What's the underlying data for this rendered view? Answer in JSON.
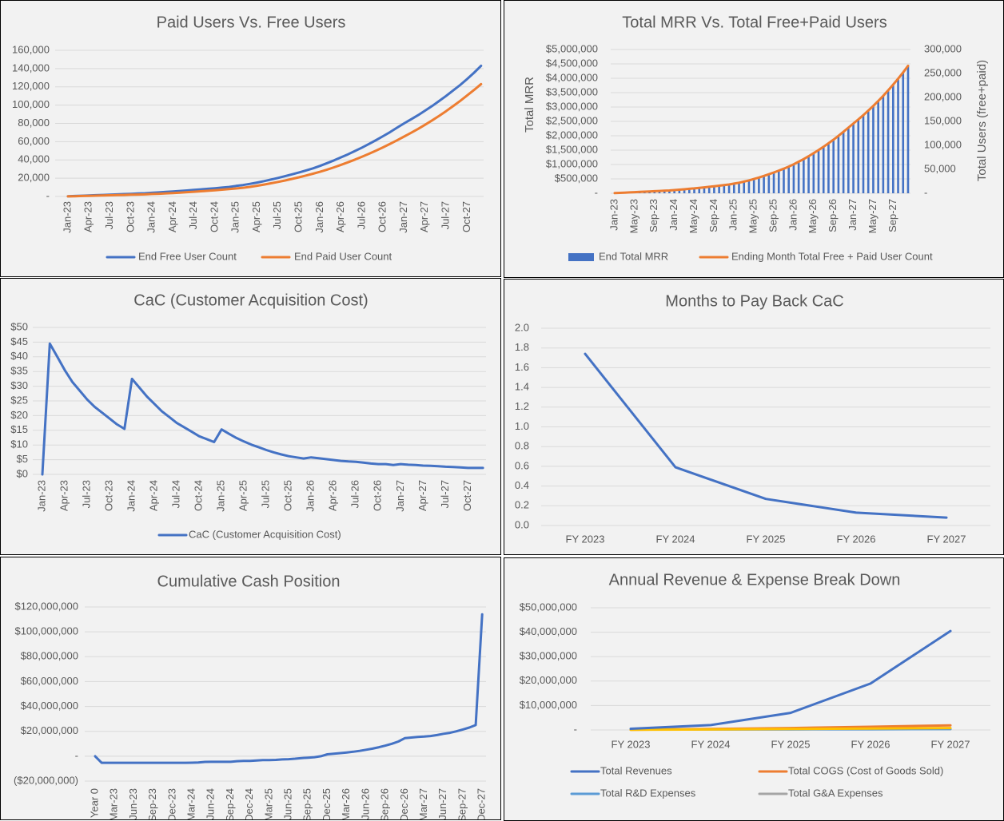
{
  "chart_data": [
    {
      "type": "line",
      "title": "Paid Users Vs. Free Users",
      "ylim": [
        0,
        160000
      ],
      "yticks": [
        "-",
        "20,000",
        "40,000",
        "60,000",
        "80,000",
        "100,000",
        "120,000",
        "140,000",
        "160,000"
      ],
      "grid": true,
      "legend": "bottom",
      "x": [
        "Jan-23",
        "Feb-23",
        "Mar-23",
        "Apr-23",
        "May-23",
        "Jun-23",
        "Jul-23",
        "Aug-23",
        "Sep-23",
        "Oct-23",
        "Nov-23",
        "Dec-23",
        "Jan-24",
        "Feb-24",
        "Mar-24",
        "Apr-24",
        "May-24",
        "Jun-24",
        "Jul-24",
        "Aug-24",
        "Sep-24",
        "Oct-24",
        "Nov-24",
        "Dec-24",
        "Jan-25",
        "Feb-25",
        "Mar-25",
        "Apr-25",
        "May-25",
        "Jun-25",
        "Jul-25",
        "Aug-25",
        "Sep-25",
        "Oct-25",
        "Nov-25",
        "Dec-25",
        "Jan-26",
        "Feb-26",
        "Mar-26",
        "Apr-26",
        "May-26",
        "Jun-26",
        "Jul-26",
        "Aug-26",
        "Sep-26",
        "Oct-26",
        "Nov-26",
        "Dec-26",
        "Jan-27",
        "Feb-27",
        "Mar-27",
        "Apr-27",
        "May-27",
        "Jun-27",
        "Jul-27",
        "Aug-27",
        "Sep-27",
        "Oct-27",
        "Nov-27",
        "Dec-27"
      ],
      "series": [
        {
          "name": "End Free User Count",
          "color": "#4472c4",
          "values": [
            200,
            500,
            800,
            1100,
            1400,
            1700,
            2000,
            2300,
            2600,
            2900,
            3200,
            3500,
            4000,
            4500,
            5000,
            5500,
            6000,
            6600,
            7200,
            7800,
            8400,
            9000,
            9700,
            10400,
            11500,
            12500,
            13800,
            15200,
            16800,
            18500,
            20300,
            22200,
            24200,
            26300,
            28500,
            30800,
            33500,
            36500,
            39500,
            42800,
            46200,
            49800,
            53500,
            57500,
            61600,
            66000,
            70500,
            75300,
            80000,
            84500,
            89000,
            94000,
            99000,
            104500,
            110000,
            116000,
            122000,
            128500,
            135500,
            143000
          ]
        },
        {
          "name": "End Paid User Count",
          "color": "#ed7d31",
          "values": [
            100,
            300,
            500,
            700,
            900,
            1100,
            1300,
            1500,
            1700,
            1900,
            2100,
            2300,
            2700,
            3000,
            3400,
            3800,
            4200,
            4700,
            5200,
            5700,
            6200,
            6800,
            7400,
            8000,
            8700,
            9500,
            10500,
            11700,
            13000,
            14400,
            15900,
            17500,
            19200,
            21000,
            22900,
            24900,
            27000,
            29400,
            31900,
            34600,
            37400,
            40400,
            43500,
            46800,
            50200,
            53800,
            57600,
            61500,
            65600,
            69700,
            74000,
            78500,
            83200,
            88200,
            93400,
            98900,
            104600,
            110500,
            116600,
            123000
          ]
        }
      ]
    },
    {
      "type": "bar+line",
      "title": "Total MRR Vs. Total Free+Paid Users",
      "ylabel": "Total MRR",
      "y2label": "Total Users (free+paid)",
      "ylim": [
        0,
        5000000
      ],
      "y2lim": [
        0,
        300000
      ],
      "yticks": [
        "-",
        "$500,000",
        "$1,000,000",
        "$1,500,000",
        "$2,000,000",
        "$2,500,000",
        "$3,000,000",
        "$3,500,000",
        "$4,000,000",
        "$4,500,000",
        "$5,000,000"
      ],
      "y2ticks": [
        "-",
        "50,000",
        "100,000",
        "150,000",
        "200,000",
        "250,000",
        "300,000"
      ],
      "grid": true,
      "legend": "bottom",
      "x": [
        "Jan-23",
        "Feb-23",
        "Mar-23",
        "Apr-23",
        "May-23",
        "Jun-23",
        "Jul-23",
        "Aug-23",
        "Sep-23",
        "Oct-23",
        "Nov-23",
        "Dec-23",
        "Jan-24",
        "Feb-24",
        "Mar-24",
        "Apr-24",
        "May-24",
        "Jun-24",
        "Jul-24",
        "Aug-24",
        "Sep-24",
        "Oct-24",
        "Nov-24",
        "Dec-24",
        "Jan-25",
        "Feb-25",
        "Mar-25",
        "Apr-25",
        "May-25",
        "Jun-25",
        "Jul-25",
        "Aug-25",
        "Sep-25",
        "Oct-25",
        "Nov-25",
        "Dec-25",
        "Jan-26",
        "Feb-26",
        "Mar-26",
        "Apr-26",
        "May-26",
        "Jun-26",
        "Jul-26",
        "Aug-26",
        "Sep-26",
        "Oct-26",
        "Nov-26",
        "Dec-26",
        "Jan-27",
        "Feb-27",
        "Mar-27",
        "Apr-27",
        "May-27",
        "Jun-27",
        "Jul-27",
        "Aug-27",
        "Sep-27",
        "Oct-27",
        "Nov-27",
        "Dec-27"
      ],
      "series": [
        {
          "name": "End Total MRR",
          "color": "#4472c4",
          "axis": "left",
          "kind": "bar",
          "values": [
            5000,
            13000,
            22000,
            30000,
            38000,
            47000,
            55000,
            63000,
            72000,
            80000,
            89000,
            97000,
            112000,
            125000,
            140000,
            155000,
            170000,
            189000,
            207000,
            225000,
            244000,
            264000,
            286000,
            307000,
            337000,
            367000,
            406000,
            449000,
            498000,
            549000,
            605000,
            663000,
            725000,
            790000,
            858000,
            930000,
            1010000,
            1100000,
            1192000,
            1293000,
            1396000,
            1506000,
            1620000,
            1742000,
            1867000,
            2001000,
            2139000,
            2285000,
            2432000,
            2575000,
            2722000,
            2881000,
            3043000,
            3218000,
            3397000,
            3589000,
            3784000,
            3991000,
            4210000,
            4442000
          ]
        },
        {
          "name": "Ending Month Total Free + Paid User Count",
          "color": "#ed7d31",
          "axis": "right",
          "kind": "line",
          "values": [
            300,
            800,
            1300,
            1800,
            2300,
            2800,
            3300,
            3800,
            4300,
            4800,
            5300,
            5800,
            6700,
            7500,
            8400,
            9300,
            10200,
            11300,
            12400,
            13500,
            14600,
            15800,
            17100,
            18400,
            20200,
            22000,
            24300,
            26900,
            29800,
            32900,
            36200,
            39700,
            43400,
            47300,
            51400,
            55700,
            60500,
            65900,
            71400,
            77400,
            83600,
            90200,
            97000,
            104300,
            111800,
            119800,
            128100,
            136800,
            145600,
            154200,
            163000,
            172500,
            182200,
            192700,
            203400,
            214900,
            226600,
            239000,
            252100,
            266000
          ]
        }
      ]
    },
    {
      "type": "line",
      "title": "CaC (Customer Acquisition Cost)",
      "ylim": [
        0,
        50
      ],
      "yticks": [
        "$0",
        "$5",
        "$10",
        "$15",
        "$20",
        "$25",
        "$30",
        "$35",
        "$40",
        "$45",
        "$50"
      ],
      "grid": true,
      "legend": "bottom",
      "x": [
        "Jan-23",
        "Feb-23",
        "Mar-23",
        "Apr-23",
        "May-23",
        "Jun-23",
        "Jul-23",
        "Aug-23",
        "Sep-23",
        "Oct-23",
        "Nov-23",
        "Dec-23",
        "Jan-24",
        "Feb-24",
        "Mar-24",
        "Apr-24",
        "May-24",
        "Jun-24",
        "Jul-24",
        "Aug-24",
        "Sep-24",
        "Oct-24",
        "Nov-24",
        "Dec-24",
        "Jan-25",
        "Feb-25",
        "Mar-25",
        "Apr-25",
        "May-25",
        "Jun-25",
        "Jul-25",
        "Aug-25",
        "Sep-25",
        "Oct-25",
        "Nov-25",
        "Dec-25",
        "Jan-26",
        "Feb-26",
        "Mar-26",
        "Apr-26",
        "May-26",
        "Jun-26",
        "Jul-26",
        "Aug-26",
        "Sep-26",
        "Oct-26",
        "Nov-26",
        "Dec-26",
        "Jan-27",
        "Feb-27",
        "Mar-27",
        "Apr-27",
        "May-27",
        "Jun-27",
        "Jul-27",
        "Aug-27",
        "Sep-27",
        "Oct-27",
        "Nov-27",
        "Dec-27"
      ],
      "series": [
        {
          "name": "CaC (Customer Acquisition Cost)",
          "color": "#4472c4",
          "values": [
            0,
            44.5,
            40,
            35.5,
            31.5,
            28.5,
            25.5,
            23,
            21,
            19,
            17,
            15.5,
            32.5,
            29.5,
            26.5,
            24,
            21.5,
            19.5,
            17.5,
            16,
            14.5,
            13,
            12,
            11,
            15.3,
            13.8,
            12.4,
            11.2,
            10.1,
            9.2,
            8.3,
            7.5,
            6.8,
            6.2,
            5.8,
            5.4,
            5.8,
            5.5,
            5.2,
            4.9,
            4.6,
            4.4,
            4.3,
            4.0,
            3.7,
            3.5,
            3.5,
            3.2,
            3.5,
            3.3,
            3.2,
            3.0,
            2.9,
            2.8,
            2.6,
            2.5,
            2.4,
            2.2,
            2.2,
            2.2
          ]
        }
      ]
    },
    {
      "type": "line",
      "title": "Months to Pay Back CaC",
      "ylim": [
        0,
        2
      ],
      "yticks": [
        "0.0",
        "0.2",
        "0.4",
        "0.6",
        "0.8",
        "1.0",
        "1.2",
        "1.4",
        "1.6",
        "1.8",
        "2.0"
      ],
      "grid": true,
      "categories": [
        "FY 2023",
        "FY 2024",
        "FY 2025",
        "FY 2026",
        "FY 2027"
      ],
      "series": [
        {
          "color": "#4472c4",
          "values": [
            1.74,
            0.59,
            0.27,
            0.13,
            0.08
          ]
        }
      ]
    },
    {
      "type": "line",
      "title": "Cumulative Cash Position",
      "ylim": [
        -20000000,
        120000000
      ],
      "yticks": [
        "($20,000,000)",
        "-",
        "$20,000,000",
        "$40,000,000",
        "$60,000,000",
        "$80,000,000",
        "$100,000,000",
        "$120,000,000"
      ],
      "grid": true,
      "x": [
        "Year 0",
        "Jan-23",
        "Feb-23",
        "Mar-23",
        "Apr-23",
        "May-23",
        "Jun-23",
        "Jul-23",
        "Aug-23",
        "Sep-23",
        "Oct-23",
        "Nov-23",
        "Dec-23",
        "Jan-24",
        "Feb-24",
        "Mar-24",
        "Apr-24",
        "May-24",
        "Jun-24",
        "Jul-24",
        "Aug-24",
        "Sep-24",
        "Oct-24",
        "Nov-24",
        "Dec-24",
        "Jan-25",
        "Feb-25",
        "Mar-25",
        "Apr-25",
        "May-25",
        "Jun-25",
        "Jul-25",
        "Aug-25",
        "Sep-25",
        "Oct-25",
        "Nov-25",
        "Dec-25",
        "Jan-26",
        "Feb-26",
        "Mar-26",
        "Apr-26",
        "May-26",
        "Jun-26",
        "Jul-26",
        "Aug-26",
        "Sep-26",
        "Oct-26",
        "Nov-26",
        "Dec-26",
        "Jan-27",
        "Feb-27",
        "Mar-27",
        "Apr-27",
        "May-27",
        "Jun-27",
        "Jul-27",
        "Aug-27",
        "Sep-27",
        "Oct-27",
        "Nov-27",
        "Dec-27"
      ],
      "series": [
        {
          "color": "#4472c4",
          "values": [
            0,
            -5300000,
            -5300000,
            -5300000,
            -5300000,
            -5300000,
            -5300000,
            -5300000,
            -5300000,
            -5300000,
            -5300000,
            -5300000,
            -5300000,
            -5300000,
            -5300000,
            -5200000,
            -5100000,
            -4600000,
            -4500000,
            -4500000,
            -4500000,
            -4500000,
            -4000000,
            -3800000,
            -3800000,
            -3500000,
            -3200000,
            -3100000,
            -3000000,
            -2600000,
            -2400000,
            -2000000,
            -1500000,
            -1200000,
            -800000,
            0,
            1500000,
            2000000,
            2500000,
            3000000,
            3600000,
            4300000,
            5200000,
            6100000,
            7200000,
            8500000,
            10000000,
            11800000,
            14500000,
            15000000,
            15500000,
            15800000,
            16200000,
            17000000,
            18000000,
            18800000,
            20000000,
            21500000,
            23000000,
            25000000,
            114000000
          ]
        }
      ]
    },
    {
      "type": "line",
      "title": "Annual Revenue & Expense Break Down",
      "ylim": [
        0,
        50000000
      ],
      "yticks": [
        "-",
        "$10,000,000",
        "$20,000,000",
        "$30,000,000",
        "$40,000,000",
        "$50,000,000"
      ],
      "grid": true,
      "legend": "bottom",
      "categories": [
        "FY 2023",
        "FY 2024",
        "FY 2025",
        "FY 2026",
        "FY 2027"
      ],
      "series": [
        {
          "name": "Total Revenues",
          "color": "#4472c4",
          "values": [
            500000,
            2000000,
            7000000,
            19000000,
            40500000
          ]
        },
        {
          "name": "Total COGS (Cost of Goods Sold)",
          "color": "#ed7d31",
          "values": [
            100000,
            400000,
            800000,
            1300000,
            1900000
          ]
        },
        {
          "name": "Total R&D Expenses",
          "color": "#5b9bd5",
          "values": [
            200000,
            200000,
            250000,
            300000,
            350000
          ]
        },
        {
          "name": "Total G&A Expenses",
          "color": "#a5a5a5",
          "values": [
            200000,
            200000,
            250000,
            300000,
            350000
          ]
        },
        {
          "color": "#ffc000",
          "values": [
            100000,
            200000,
            400000,
            600000,
            800000
          ]
        }
      ]
    }
  ]
}
